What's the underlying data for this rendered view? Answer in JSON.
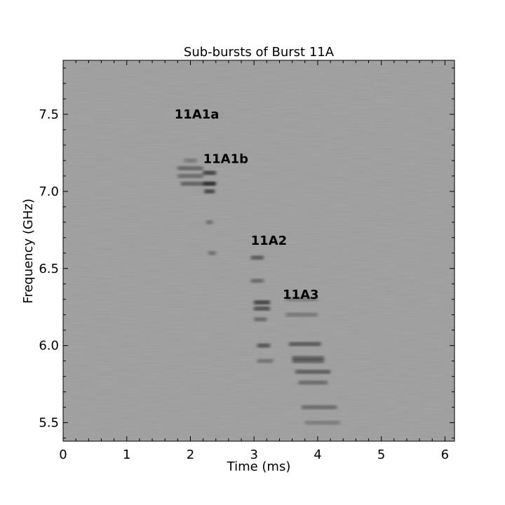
{
  "chart_data": {
    "type": "heatmap",
    "title": "Sub-bursts of Burst 11A",
    "xlabel": "Time (ms)",
    "ylabel": "Frequency (GHz)",
    "xlim": [
      0,
      6.15
    ],
    "ylim": [
      5.38,
      7.85
    ],
    "colormap": "gray",
    "background_color": "#9a9a9a",
    "xticks": [
      0,
      1,
      2,
      3,
      4,
      5,
      6
    ],
    "xtick_labels": [
      "0",
      "1",
      "2",
      "3",
      "4",
      "5",
      "6"
    ],
    "yticks": [
      5.5,
      6.0,
      6.5,
      7.0,
      7.5
    ],
    "ytick_labels": [
      "5.5",
      "6.0",
      "6.5",
      "7.0",
      "7.5"
    ],
    "annotations": [
      {
        "text": "11A1a",
        "x": 1.75,
        "y": 7.5
      },
      {
        "text": "11A1b",
        "x": 2.2,
        "y": 7.21
      },
      {
        "text": "11A2",
        "x": 2.95,
        "y": 6.68
      },
      {
        "text": "11A3",
        "x": 3.45,
        "y": 6.33
      }
    ],
    "emission_features": [
      {
        "name": "11A1a",
        "t_start": 1.8,
        "t_end": 2.2,
        "f_center": 7.1,
        "intensity": 0.5
      },
      {
        "name": "11A1b",
        "t_start": 2.2,
        "t_end": 2.4,
        "f_center": 7.05,
        "intensity": 0.7
      },
      {
        "name": "11A2",
        "t_start": 2.95,
        "t_end": 3.3,
        "f_center": 6.3,
        "intensity": 0.6
      },
      {
        "name": "11A3",
        "t_start": 3.5,
        "t_end": 4.3,
        "f_center": 5.85,
        "intensity": 0.5
      }
    ]
  }
}
